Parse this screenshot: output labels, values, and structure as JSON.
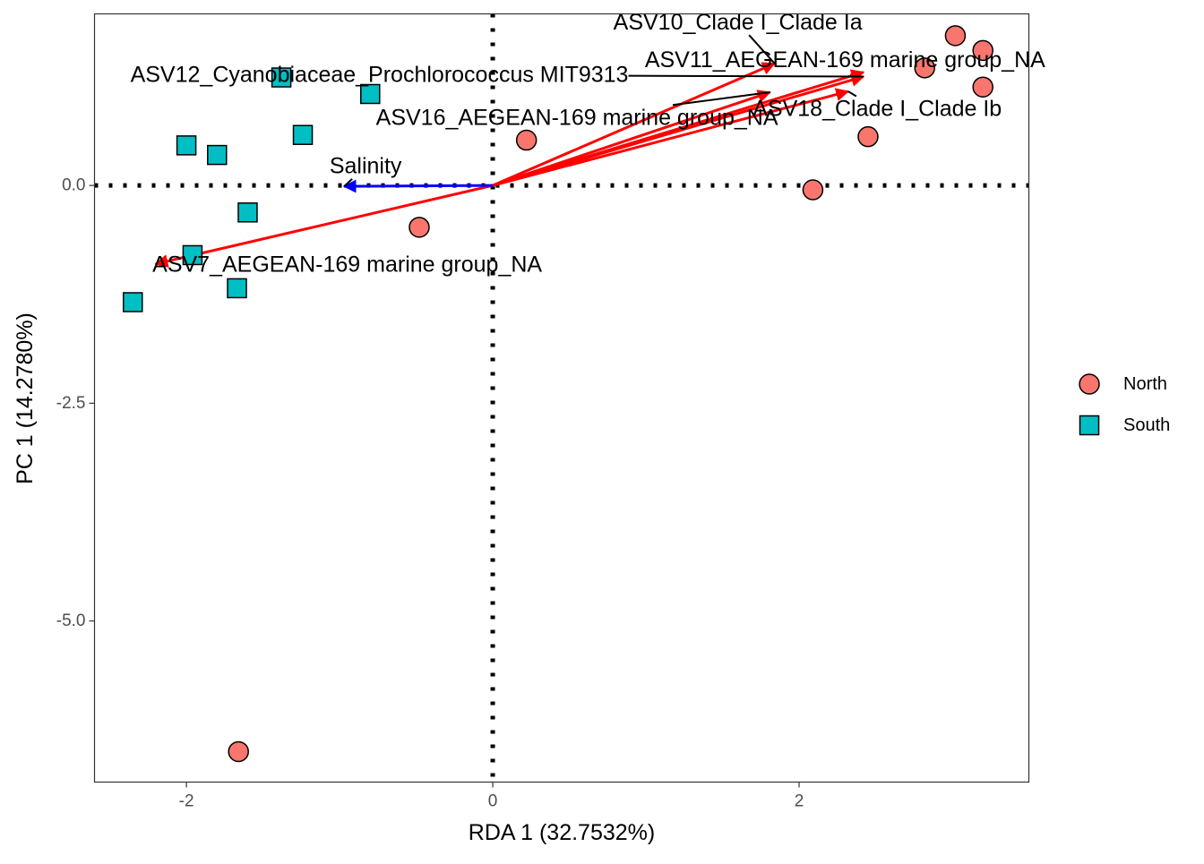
{
  "chart_data": {
    "type": "scatter",
    "subtype": "rda-biplot",
    "xlabel": "RDA 1 (32.7532%)",
    "ylabel": "PC 1 (14.2780%)",
    "xlim": [
      -2.6,
      3.5
    ],
    "ylim": [
      -6.85,
      1.97
    ],
    "x_ticks": [
      {
        "value": -2,
        "label": "-2"
      },
      {
        "value": 0,
        "label": "0"
      },
      {
        "value": 2,
        "label": "2"
      }
    ],
    "y_ticks": [
      {
        "value": 0,
        "label": "0.0"
      },
      {
        "value": -2.5,
        "label": "-2.5"
      },
      {
        "value": -5,
        "label": "-5.0"
      }
    ],
    "grid": false,
    "reference_lines": {
      "x": 0,
      "y": 0,
      "style": "dotted"
    },
    "legend": {
      "position": "right",
      "entries": [
        {
          "name": "North",
          "shape": "circle",
          "color": "#F8766D"
        },
        {
          "name": "South",
          "shape": "square",
          "color": "#00BFC4"
        }
      ]
    },
    "series": [
      {
        "name": "North",
        "shape": "circle",
        "color": "#F8766D",
        "points": [
          {
            "x": 3.02,
            "y": 1.72
          },
          {
            "x": 3.2,
            "y": 1.55
          },
          {
            "x": 2.82,
            "y": 1.35
          },
          {
            "x": 3.2,
            "y": 1.13
          },
          {
            "x": 2.45,
            "y": 0.56
          },
          {
            "x": 0.22,
            "y": 0.52
          },
          {
            "x": 2.09,
            "y": -0.05
          },
          {
            "x": -0.48,
            "y": -0.48
          },
          {
            "x": -1.66,
            "y": -6.5
          }
        ]
      },
      {
        "name": "South",
        "shape": "square",
        "color": "#00BFC4",
        "points": [
          {
            "x": -1.38,
            "y": 1.24
          },
          {
            "x": -0.8,
            "y": 1.05
          },
          {
            "x": -1.24,
            "y": 0.58
          },
          {
            "x": -2.0,
            "y": 0.46
          },
          {
            "x": -1.8,
            "y": 0.35
          },
          {
            "x": -1.6,
            "y": -0.31
          },
          {
            "x": -1.96,
            "y": -0.8
          },
          {
            "x": -1.67,
            "y": -1.18
          },
          {
            "x": -2.35,
            "y": -1.34
          }
        ]
      }
    ],
    "arrows": [
      {
        "label": "ASV10_Clade I_Clade Ia",
        "x": 1.84,
        "y": 1.4,
        "color": "#FF0000",
        "label_x": 1.6,
        "label_y": 1.87
      },
      {
        "label": "ASV11_AEGEAN-169 marine group_NA",
        "x": 2.42,
        "y": 1.3,
        "color": "#FF0000",
        "label_x": 2.3,
        "label_y": 1.44
      },
      {
        "label": "ASV12_Cyanobiaceae_Prochlorococcus MIT9313",
        "x": 2.42,
        "y": 1.25,
        "color": "#FF0000",
        "label_x": -0.74,
        "label_y": 1.27
      },
      {
        "label": "ASV16_AEGEAN-169 marine group_NA",
        "x": 1.81,
        "y": 1.07,
        "color": "#FF0000",
        "label_x": 0.55,
        "label_y": 0.78
      },
      {
        "label": "ASV18_Clade I_Clade Ib",
        "x": 2.32,
        "y": 1.08,
        "color": "#FF0000",
        "label_x": 2.51,
        "label_y": 0.88
      },
      {
        "label": "ASV7_AEGEAN-169 marine group_NA",
        "x": -2.2,
        "y": -0.9,
        "color": "#FF0000",
        "label_x": -0.95,
        "label_y": -0.91
      },
      {
        "label": "Salinity",
        "x": -0.97,
        "y": -0.01,
        "color": "#0000FF",
        "label_x": -0.83,
        "label_y": 0.22
      }
    ]
  }
}
